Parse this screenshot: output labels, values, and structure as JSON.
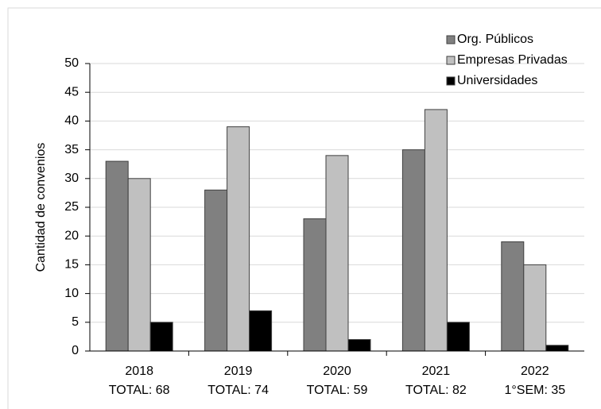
{
  "chart_data": {
    "type": "bar",
    "y_axis_label": "Cantidad de convenios",
    "categories": [
      "2018",
      "2019",
      "2020",
      "2021",
      "2022"
    ],
    "category_totals": [
      "TOTAL: 68",
      "TOTAL: 74",
      "TOTAL: 59",
      "TOTAL: 82",
      "1°SEM: 35"
    ],
    "series": [
      {
        "name": "Org. Públicos",
        "color": "#808080",
        "values": [
          33,
          28,
          23,
          35,
          19
        ]
      },
      {
        "name": "Empresas Privadas",
        "color": "#c0c0c0",
        "values": [
          30,
          39,
          34,
          42,
          15
        ]
      },
      {
        "name": "Universidades",
        "color": "#000000",
        "values": [
          5,
          7,
          2,
          5,
          1
        ]
      }
    ],
    "ylim": [
      0,
      50
    ],
    "yticks": [
      0,
      5,
      10,
      15,
      20,
      25,
      30,
      35,
      40,
      45,
      50
    ],
    "grid": true,
    "legend": "top-right"
  }
}
